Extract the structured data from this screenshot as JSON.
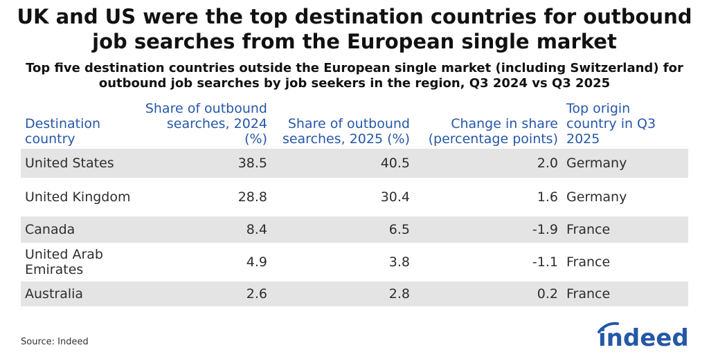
{
  "header": {
    "title": "UK and US were the top destination countries for outbound job searches from the European single market",
    "subtitle": "Top five destination countries outside the European single market (including Switzerland) for outbound job searches by job seekers in the region, Q3 2024 vs Q3 2025"
  },
  "table": {
    "columns": [
      "Destination country",
      "Share of outbound searches, 2024 (%)",
      "Share of outbound searches, 2025 (%)",
      "Change in share (percentage points)",
      "Top origin country in Q3 2025"
    ],
    "rows": [
      [
        "United States",
        "38.5",
        "40.5",
        "2.0",
        "Germany"
      ],
      [
        "United Kingdom",
        "28.8",
        "30.4",
        "1.6",
        "Germany"
      ],
      [
        "Canada",
        "8.4",
        "6.5",
        "-1.9",
        "France"
      ],
      [
        "United Arab Emirates",
        "4.9",
        "3.8",
        "-1.1",
        "France"
      ],
      [
        "Australia",
        "2.6",
        "2.8",
        "0.2",
        "France"
      ]
    ]
  },
  "source": "Source: Indeed",
  "logo": "indeed"
}
